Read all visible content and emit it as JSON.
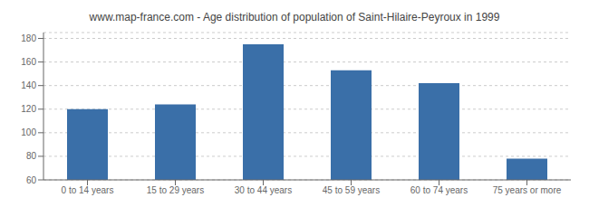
{
  "chart_data": {
    "type": "bar",
    "title": "www.map-france.com - Age distribution of population of Saint-Hilaire-Peyroux in 1999",
    "categories": [
      "0 to 14 years",
      "15 to 29 years",
      "30 to 44 years",
      "45 to 59 years",
      "60 to 74 years",
      "75 years or more"
    ],
    "values": [
      120,
      124,
      175,
      153,
      142,
      78
    ],
    "color": "#3a6fa8",
    "ylim": [
      60,
      185
    ],
    "yticks": [
      60,
      80,
      100,
      120,
      140,
      160,
      180
    ],
    "grid": true
  }
}
